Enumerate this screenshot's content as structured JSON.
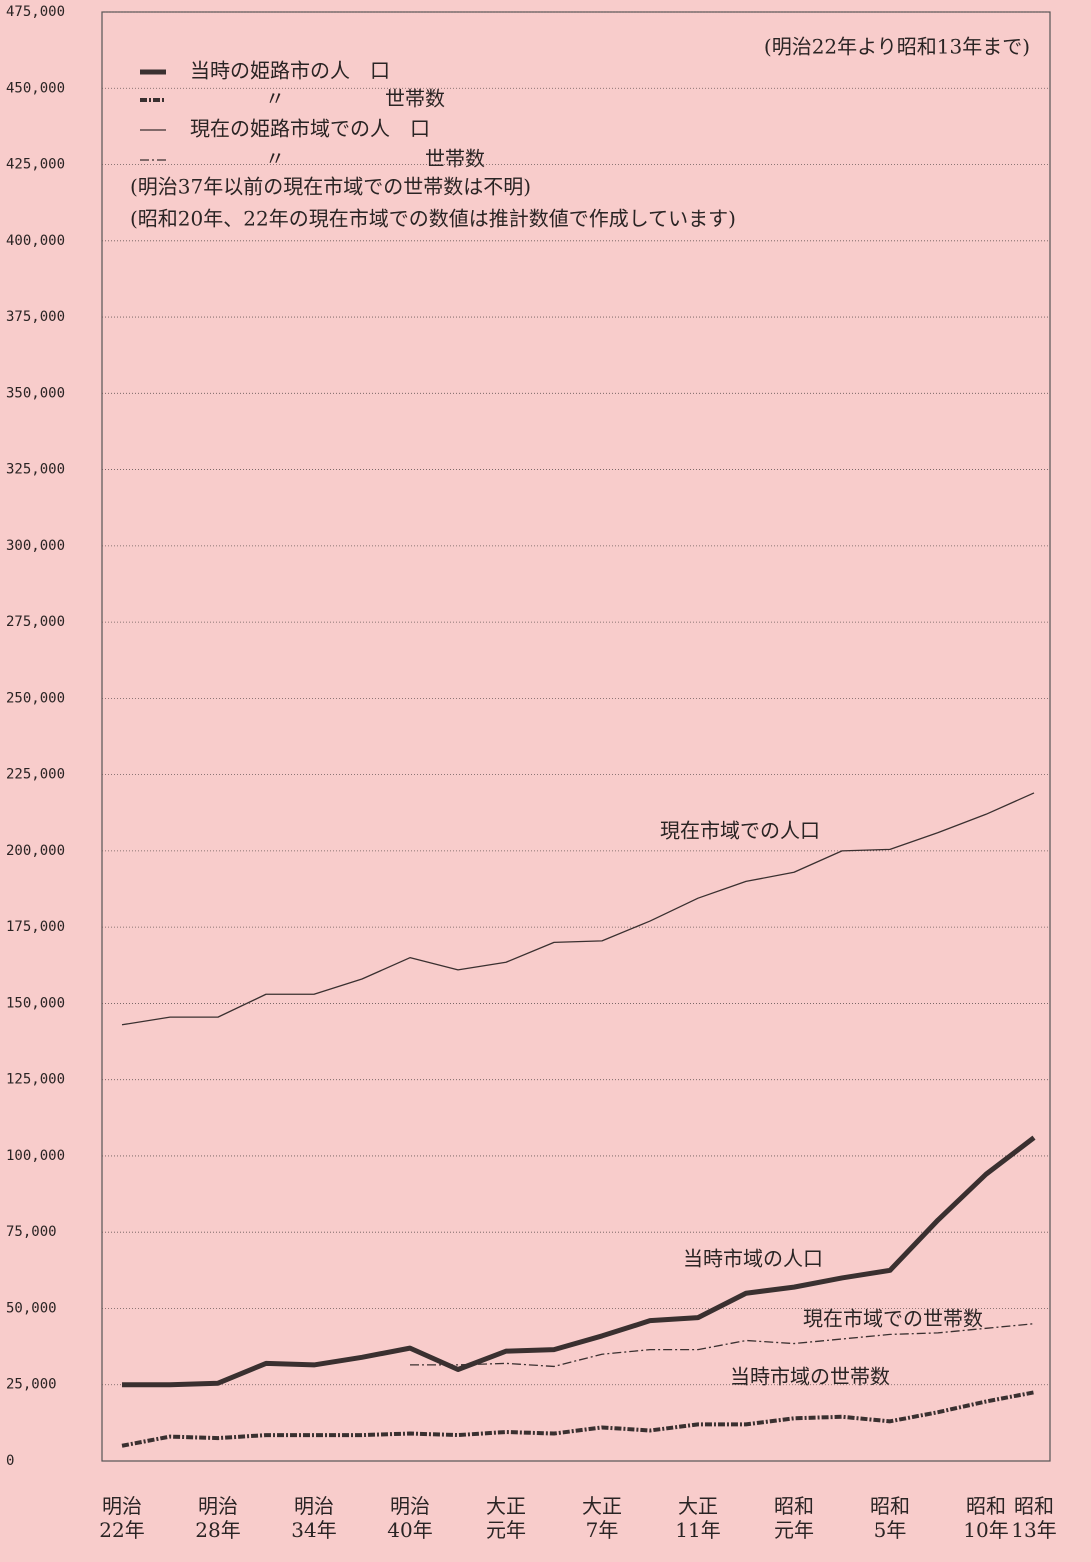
{
  "chart_data": {
    "type": "line",
    "note": "(明治22年より昭和13年まで)",
    "notes": [
      "(明治37年以前の現在市域での世帯数は不明)",
      "(昭和20年、22年の現在市域での数値は推計数値で作成しています)"
    ],
    "annotations": [
      "現在市域での人口",
      "当時市域の人口",
      "現在市域での世帯数",
      "当時市域の世帯数"
    ],
    "categories": [
      "明治22年",
      null,
      "明治28年",
      null,
      "明治34年",
      null,
      "明治40年",
      null,
      "大正元年",
      null,
      "大正7年",
      null,
      "大正11年",
      null,
      "昭和元年",
      null,
      "昭和5年",
      null,
      "昭和10年",
      "昭和13年"
    ],
    "series": [
      {
        "name": "当時の姫路市の人　口",
        "color": "#3a3030",
        "style": "thick",
        "values": [
          25000,
          25000,
          25500,
          32000,
          31500,
          34000,
          37000,
          30000,
          36000,
          36500,
          41000,
          46000,
          47000,
          55000,
          57000,
          60000,
          62500,
          79000,
          94000,
          106000
        ]
      },
      {
        "name": "〃　　　　　世帯数",
        "color": "#3a3030",
        "style": "thick-dotted",
        "values": [
          5000,
          8000,
          7500,
          8500,
          8500,
          8500,
          9000,
          8500,
          9500,
          9000,
          11000,
          10000,
          12000,
          12000,
          14000,
          14500,
          13000,
          16000,
          19500,
          22500
        ]
      },
      {
        "name": "現在の姫路市域での人　口",
        "color": "#3a3030",
        "style": "thin",
        "values": [
          143000,
          145500,
          145500,
          153000,
          153000,
          158000,
          165000,
          161000,
          163500,
          170000,
          170500,
          177000,
          184500,
          190000,
          193000,
          200000,
          200500,
          206000,
          212000,
          219000
        ]
      },
      {
        "name": "〃　　　　　　　世帯数",
        "color": "#3a3030",
        "style": "thin-dashdot",
        "values": [
          null,
          null,
          null,
          null,
          null,
          null,
          31500,
          31500,
          32000,
          31000,
          35000,
          36500,
          36500,
          39500,
          38500,
          40000,
          41500,
          42000,
          43500,
          45000
        ]
      }
    ],
    "ylim": [
      0,
      475000
    ],
    "yticks": [
      0,
      {
        "value": 25000,
        "label": "25,000"
      },
      {
        "value": 50000,
        "label": "50,000"
      },
      {
        "value": 75000,
        "label": "75,000"
      },
      {
        "value": 100000,
        "label": "100,000"
      },
      {
        "value": 125000,
        "label": "125,000"
      },
      {
        "value": 150000,
        "label": "150,000"
      },
      {
        "value": 175000,
        "label": "175,000"
      },
      {
        "value": 200000,
        "label": "200,000"
      },
      {
        "value": 225000,
        "label": "225,000"
      },
      {
        "value": 250000,
        "label": "250,000"
      },
      {
        "value": 275000,
        "label": "275,000"
      },
      {
        "value": 300000,
        "label": "300,000"
      },
      {
        "value": 325000,
        "label": "325,000"
      },
      {
        "value": 350000,
        "label": "350,000"
      },
      {
        "value": 375000,
        "label": "375,000"
      },
      {
        "value": 400000,
        "label": "400,000"
      },
      {
        "value": 425000,
        "label": "425,000"
      },
      {
        "value": 450000,
        "label": "450,000"
      },
      {
        "value": 475000,
        "label": "475,000"
      }
    ],
    "grid": true
  }
}
